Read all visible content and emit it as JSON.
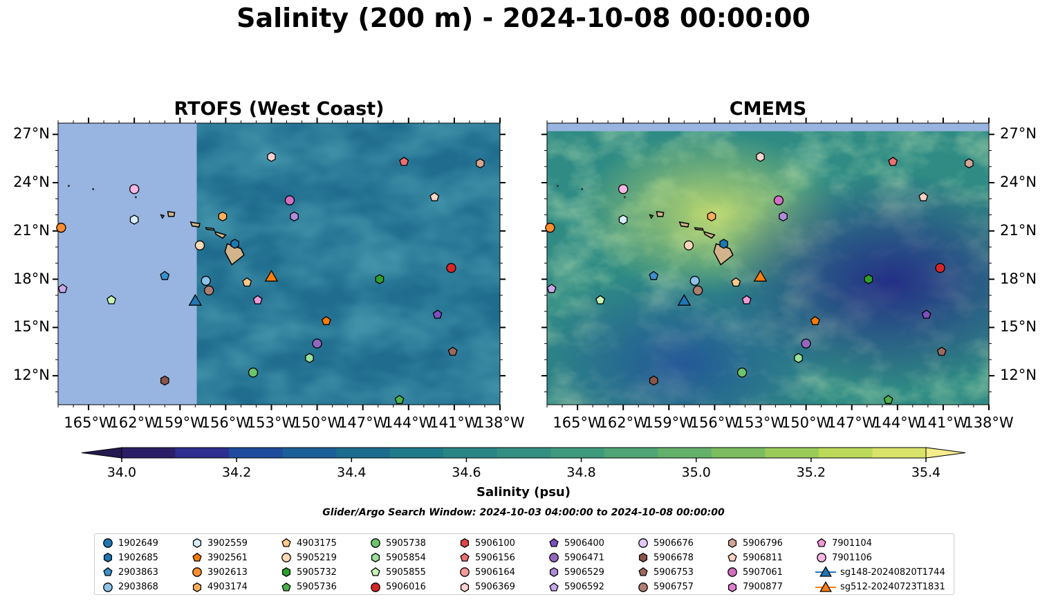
{
  "title": "Salinity (200 m) - 2024-10-08 00:00:00",
  "chart_data": [
    {
      "type": "heatmap",
      "title": "RTOFS (West Coast)",
      "variable": "Salinity (200 m)",
      "xlim": [
        -167,
        -138
      ],
      "ylim": [
        10.2,
        27.7
      ],
      "x_ticks": [
        -165,
        -162,
        -159,
        -156,
        -153,
        -150,
        -147,
        -144,
        -141,
        -138
      ],
      "x_tick_labels": [
        "165°W",
        "162°W",
        "159°W",
        "156°W",
        "153°W",
        "150°W",
        "147°W",
        "144°W",
        "141°W",
        "138°W"
      ],
      "y_ticks": [
        12,
        15,
        18,
        21,
        24,
        27
      ],
      "y_tick_labels": [
        "12°N",
        "15°N",
        "18°N",
        "21°N",
        "24°N",
        "27°N"
      ],
      "data_domain": {
        "lon": [
          -157.9,
          -138
        ],
        "lat": [
          10.2,
          27.7
        ]
      },
      "background_salinity": 34.55,
      "no_data_color": "#98b4e0",
      "grid": false
    },
    {
      "type": "heatmap",
      "title": "CMEMS",
      "variable": "Salinity (200 m)",
      "xlim": [
        -167,
        -138
      ],
      "ylim": [
        10.2,
        27.7
      ],
      "x_ticks": [
        -165,
        -162,
        -159,
        -156,
        -153,
        -150,
        -147,
        -144,
        -141,
        -138
      ],
      "x_tick_labels": [
        "165°W",
        "162°W",
        "159°W",
        "156°W",
        "153°W",
        "150°W",
        "147°W",
        "144°W",
        "141°W",
        "138°W"
      ],
      "y_ticks": [
        12,
        15,
        18,
        21,
        24,
        27
      ],
      "y_tick_labels": [
        "12°N",
        "15°N",
        "18°N",
        "21°N",
        "24°N",
        "27°N"
      ],
      "data_domain": {
        "lon": [
          -167,
          -138
        ],
        "lat": [
          10.2,
          27.2
        ]
      },
      "no_data_color": "#98b4e0",
      "grid": false
    }
  ],
  "colorbar": {
    "label": "Salinity (psu)",
    "min": 34.0,
    "max": 35.4,
    "ticks": [
      34.0,
      34.2,
      34.4,
      34.6,
      34.8,
      35.0,
      35.2,
      35.4
    ],
    "tick_labels": [
      "34.0",
      "34.2",
      "34.4",
      "34.6",
      "34.8",
      "35.0",
      "35.2",
      "35.4"
    ],
    "bins": [
      "#2a1f66",
      "#2d2e8f",
      "#1f4b9c",
      "#1b5f98",
      "#1b6c8e",
      "#1f7a89",
      "#2a8585",
      "#338f82",
      "#3f9a7d",
      "#4fa575",
      "#63b06b",
      "#7bbd60",
      "#9acb58",
      "#bcd95a",
      "#d9e26a"
    ],
    "extend_low_color": "#241a4f",
    "extend_high_color": "#f5ec8c"
  },
  "search_window": "Glider/Argo Search Window: 2024-10-03 04:00:00 to 2024-10-08 00:00:00",
  "floats": [
    {
      "id": "1902649",
      "marker": "circle",
      "color": "#1f77b4",
      "lon": null,
      "lat": null
    },
    {
      "id": "1902685",
      "marker": "hexagon",
      "color": "#1f77b4",
      "lon": -155.4,
      "lat": 20.2
    },
    {
      "id": "2903863",
      "marker": "pentagon",
      "color": "#3c90cc",
      "lon": -160.0,
      "lat": 18.2
    },
    {
      "id": "2903868",
      "marker": "circle",
      "color": "#8ec2e8",
      "lon": -157.3,
      "lat": 17.9
    },
    {
      "id": "3902559",
      "marker": "hexagon",
      "color": "#d6eef9",
      "lon": -162.0,
      "lat": 21.7
    },
    {
      "id": "3902561",
      "marker": "pentagon",
      "color": "#f57b0a",
      "lon": -149.4,
      "lat": 15.4
    },
    {
      "id": "3902613",
      "marker": "circle",
      "color": "#ff8c2f",
      "lon": -166.8,
      "lat": 21.2
    },
    {
      "id": "4903174",
      "marker": "hexagon",
      "color": "#ffad5a",
      "lon": -156.2,
      "lat": 21.9
    },
    {
      "id": "4903175",
      "marker": "pentagon",
      "color": "#fcc98a",
      "lon": -154.6,
      "lat": 17.8
    },
    {
      "id": "5905219",
      "marker": "circle",
      "color": "#fdd8b6",
      "lon": -157.7,
      "lat": 20.1
    },
    {
      "id": "5905732",
      "marker": "hexagon",
      "color": "#2ca02c",
      "lon": -145.9,
      "lat": 18.0
    },
    {
      "id": "5905736",
      "marker": "pentagon",
      "color": "#4cb04c",
      "lon": -144.6,
      "lat": 10.5
    },
    {
      "id": "5905738",
      "marker": "circle",
      "color": "#6cc46c",
      "lon": -154.2,
      "lat": 12.2
    },
    {
      "id": "5905854",
      "marker": "hexagon",
      "color": "#9be09b",
      "lon": -150.5,
      "lat": 13.1
    },
    {
      "id": "5905855",
      "marker": "pentagon",
      "color": "#c8f4b5",
      "lon": -163.5,
      "lat": 16.7
    },
    {
      "id": "5906016",
      "marker": "circle",
      "color": "#d62728",
      "lon": -141.2,
      "lat": 18.7
    },
    {
      "id": "5906100",
      "marker": "hexagon",
      "color": "#e04646",
      "lon": null,
      "lat": null
    },
    {
      "id": "5906156",
      "marker": "pentagon",
      "color": "#ec7070",
      "lon": -144.3,
      "lat": 25.3
    },
    {
      "id": "5906164",
      "marker": "circle",
      "color": "#f59a9a",
      "lon": null,
      "lat": null
    },
    {
      "id": "5906369",
      "marker": "hexagon",
      "color": "#fcd3d0",
      "lon": -153.0,
      "lat": 25.6
    },
    {
      "id": "5906400",
      "marker": "pentagon",
      "color": "#7d4fbf",
      "lon": -142.1,
      "lat": 15.8
    },
    {
      "id": "5906471",
      "marker": "circle",
      "color": "#9467bd",
      "lon": -150.0,
      "lat": 14.0
    },
    {
      "id": "5906529",
      "marker": "hexagon",
      "color": "#b08bdb",
      "lon": -151.5,
      "lat": 21.9
    },
    {
      "id": "5906592",
      "marker": "pentagon",
      "color": "#c8a8ea",
      "lon": -166.7,
      "lat": 17.4
    },
    {
      "id": "5906676",
      "marker": "circle",
      "color": "#e2c9f7",
      "lon": null,
      "lat": null
    },
    {
      "id": "5906678",
      "marker": "hexagon",
      "color": "#8c564b",
      "lon": -160.0,
      "lat": 11.7
    },
    {
      "id": "5906753",
      "marker": "pentagon",
      "color": "#9d6a5e",
      "lon": -141.1,
      "lat": 13.5
    },
    {
      "id": "5906757",
      "marker": "circle",
      "color": "#b07e70",
      "lon": -157.1,
      "lat": 17.3
    },
    {
      "id": "5906796",
      "marker": "hexagon",
      "color": "#d2a697",
      "lon": -139.3,
      "lat": 25.2
    },
    {
      "id": "5906811",
      "marker": "pentagon",
      "color": "#fbd4c4",
      "lon": -142.3,
      "lat": 23.1
    },
    {
      "id": "5907061",
      "marker": "circle",
      "color": "#d26fc0",
      "lon": -151.8,
      "lat": 22.9
    },
    {
      "id": "7900877",
      "marker": "hexagon",
      "color": "#e07fd0",
      "lon": null,
      "lat": null
    },
    {
      "id": "7901104",
      "marker": "pentagon",
      "color": "#f29ad9",
      "lon": -153.9,
      "lat": 16.7
    },
    {
      "id": "7901106",
      "marker": "circle",
      "color": "#f7b6e4",
      "lon": -162.0,
      "lat": 23.6
    },
    {
      "id": "sg148-20240820T1744",
      "marker": "triangle",
      "color": "#1f77b4",
      "lon": -158.0,
      "lat": 16.6
    },
    {
      "id": "sg512-20240723T1831",
      "marker": "triangle",
      "color": "#ff7f0e",
      "lon": -153.0,
      "lat": 18.1
    }
  ]
}
